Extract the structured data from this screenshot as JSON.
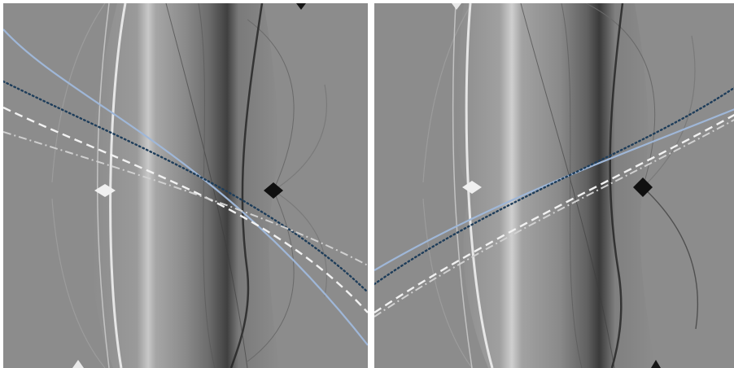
{
  "figure": {
    "panels": [
      {
        "id": "left",
        "curve_styles": [
          "light-blue-solid",
          "dark-blue-dotted",
          "white-dashed",
          "light-gray-dash-dot"
        ]
      },
      {
        "id": "right",
        "curve_styles": [
          "light-blue-solid",
          "dark-blue-dotted",
          "white-dashed",
          "light-gray-dash-dot"
        ]
      }
    ]
  },
  "colors": {
    "background": "#ffffff",
    "field": "#8c8c8c",
    "curve_blue": "#9fb7d8",
    "curve_dark": "#1e3d5a",
    "curve_white": "#f2f2f2",
    "curve_gray": "#d0d0d0"
  }
}
